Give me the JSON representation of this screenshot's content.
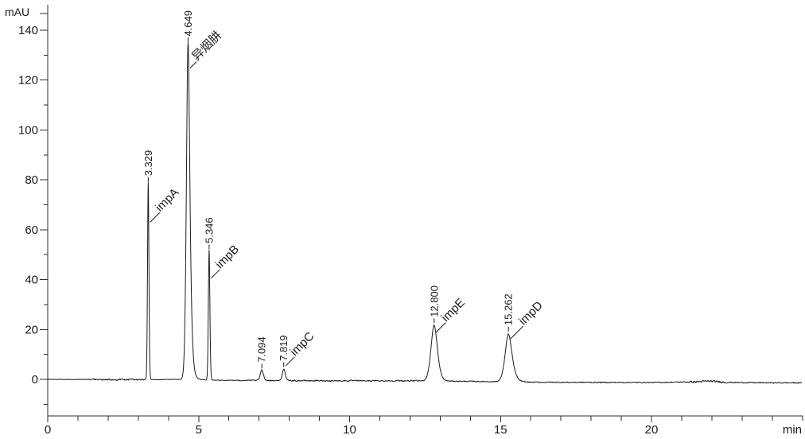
{
  "chart_data": {
    "type": "line",
    "title": "",
    "xlabel": "min",
    "ylabel": "mAU",
    "xlim": [
      0,
      25
    ],
    "ylim_visible": [
      -14.6,
      147
    ],
    "grid": false,
    "legend": false,
    "x_ticks_major": [
      0,
      5,
      10,
      15,
      20
    ],
    "x_tick_minor_interval": 1,
    "y_ticks_major": [
      0,
      20,
      40,
      60,
      80,
      100,
      120,
      140
    ],
    "y_tick_minor_interval": 10,
    "baseline_mau": 0,
    "baseline_drift_anchors": [
      [
        0,
        0
      ],
      [
        1.4,
        -0.05
      ],
      [
        3.2,
        -0.1
      ],
      [
        4.5,
        0
      ],
      [
        5.55,
        -0.35
      ],
      [
        7,
        -0.45
      ],
      [
        9,
        -0.55
      ],
      [
        12.3,
        -0.6
      ],
      [
        14,
        -0.8
      ],
      [
        16,
        -1.15
      ],
      [
        20,
        -1.25
      ],
      [
        21.5,
        -1.0
      ],
      [
        21.9,
        -0.7
      ],
      [
        22.5,
        -1.2
      ],
      [
        23.5,
        -1.35
      ],
      [
        25,
        -1.4
      ]
    ],
    "noise_zones": [
      {
        "from": 0,
        "to": 1.4,
        "amp": 0.15
      },
      {
        "from": 1.4,
        "to": 3.2,
        "amp": 0.4
      },
      {
        "from": 3.2,
        "to": 6.3,
        "amp": 0.15
      },
      {
        "from": 6.3,
        "to": 7.9,
        "amp": 0.28
      },
      {
        "from": 7.9,
        "to": 12.4,
        "amp": 0.33
      },
      {
        "from": 12.4,
        "to": 16.2,
        "amp": 0.25
      },
      {
        "from": 16.2,
        "to": 18.8,
        "amp": 0.3
      },
      {
        "from": 18.8,
        "to": 21.2,
        "amp": 0.25
      },
      {
        "from": 21.2,
        "to": 22.5,
        "amp": 0.5
      },
      {
        "from": 22.5,
        "to": 25,
        "amp": 0.28
      }
    ],
    "peaks": [
      {
        "rt_min": 3.329,
        "rt_label": "3.329",
        "height_mau": 79,
        "sigma_min": 0.022,
        "skew_l": 1.0,
        "skew_r": 2.0,
        "compound": "impA",
        "leader_dy": 50,
        "leader_len": 12
      },
      {
        "rt_min": 4.649,
        "rt_label": "4.649",
        "height_mau": 135,
        "sigma_min": 0.05,
        "skew_l": 1.2,
        "skew_r": 3.0,
        "compound": "异烟肼",
        "leader_dy": 32,
        "leader_len": 8
      },
      {
        "rt_min": 5.346,
        "rt_label": "5.346",
        "height_mau": 52,
        "sigma_min": 0.024,
        "skew_l": 1.0,
        "skew_r": 2.0,
        "compound": "impB",
        "leader_dy": 36,
        "leader_len": 11
      },
      {
        "rt_min": 7.094,
        "rt_label": "7.094",
        "height_mau": 4.2,
        "sigma_min": 0.05,
        "skew_l": 0.5,
        "skew_r": 0.8,
        "compound": null,
        "leader_dy": 0,
        "leader_len": 0
      },
      {
        "rt_min": 7.819,
        "rt_label": "7.819",
        "height_mau": 4.8,
        "sigma_min": 0.045,
        "skew_l": 0.5,
        "skew_r": 0.8,
        "compound": "impC",
        "leader_dy": -2,
        "leader_len": 11
      },
      {
        "rt_min": 12.8,
        "rt_label": "12.800",
        "height_mau": 22.4,
        "sigma_min": 0.095,
        "skew_l": 0.6,
        "skew_r": 1.0,
        "compound": "impE",
        "leader_dy": 11,
        "leader_len": 12
      },
      {
        "rt_min": 15.262,
        "rt_label": "15.262",
        "height_mau": 19.1,
        "sigma_min": 0.1,
        "skew_l": 0.6,
        "skew_r": 1.3,
        "compound": "impD",
        "leader_dy": 9,
        "leader_len": 16
      }
    ]
  },
  "colors": {
    "background": "#ffffff",
    "axis": "#2e2e2e",
    "trace": "#1c1c1c",
    "text": "#1a1a1a"
  }
}
